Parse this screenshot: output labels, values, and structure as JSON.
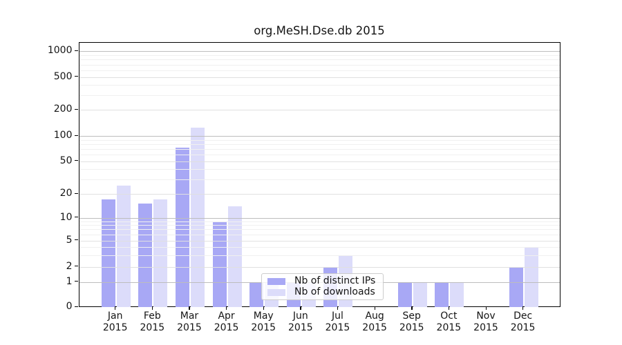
{
  "title": "org.MeSH.Dse.db 2015",
  "chart_data": {
    "type": "bar",
    "title": "org.MeSH.Dse.db 2015",
    "categories": [
      "Jan",
      "Feb",
      "Mar",
      "Apr",
      "May",
      "Jun",
      "Jul",
      "Aug",
      "Sep",
      "Oct",
      "Nov",
      "Dec"
    ],
    "category_year": "2015",
    "series": [
      {
        "name": "Nb of distinct IPs",
        "color": "#a8a8f5",
        "values": [
          17,
          15,
          72,
          9,
          1,
          1,
          2,
          0,
          1,
          1,
          0,
          2
        ]
      },
      {
        "name": "Nb of downloads",
        "color": "#dcdcfa",
        "values": [
          25,
          17,
          125,
          14,
          1,
          1,
          3,
          0,
          1,
          1,
          0,
          4
        ]
      }
    ],
    "y_axis": {
      "scale": "symlog",
      "ticks": [
        0,
        1,
        2,
        5,
        10,
        20,
        50,
        100,
        200,
        500,
        1000
      ],
      "major_ticks": [
        1,
        10,
        100,
        1000
      ],
      "minor_gridlines": [
        3,
        4,
        6,
        7,
        8,
        9,
        30,
        40,
        60,
        70,
        80,
        90,
        300,
        400,
        600,
        700,
        800,
        900
      ],
      "ylim": [
        0,
        1300
      ]
    },
    "xlabel": "",
    "ylabel": "",
    "grid": true,
    "grid_over_bars": true,
    "legend": {
      "position": "lower-center",
      "entries": [
        "Nb of distinct IPs",
        "Nb of downloads"
      ]
    }
  },
  "colors": {
    "distinct_ips": "#a8a8f5",
    "downloads": "#dcdcfa",
    "frame": "#000000",
    "grid_major": "#bdbdbd",
    "grid_labeled": "#e0e0e0",
    "grid_minor": "#f0f0f0",
    "background": "#ffffff"
  }
}
